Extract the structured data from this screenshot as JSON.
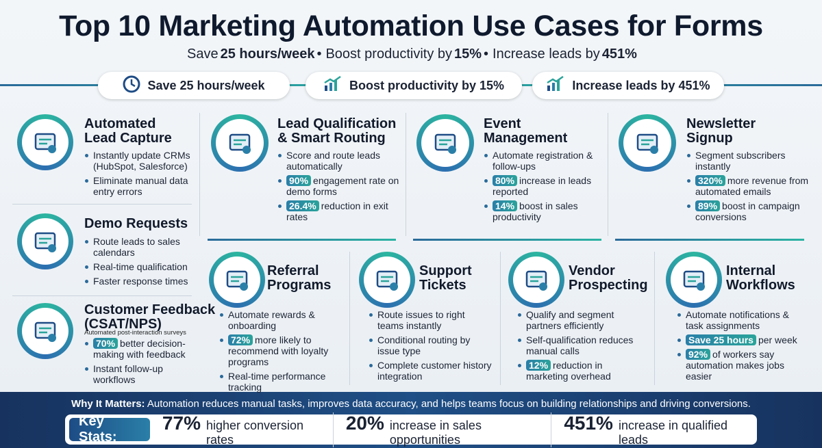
{
  "header": {
    "title": "Top 10 Marketing Automation Use Cases for Forms",
    "subtitle": [
      {
        "text": "Save",
        "bold": false
      },
      {
        "text": "25 hours/week",
        "bold": true
      },
      {
        "text": "•",
        "bold": false
      },
      {
        "text": "Boost productivity by",
        "bold": false
      },
      {
        "text": "15%",
        "bold": true
      },
      {
        "text": "•",
        "bold": false
      },
      {
        "text": "Increase leads by",
        "bold": false
      },
      {
        "text": "451%",
        "bold": true
      }
    ],
    "pills": [
      "Save 25 hours/week",
      "Boost productivity by 15%",
      "Increase leads by 451%"
    ]
  },
  "cards": [
    {
      "title": [
        "Automated",
        "Lead Capture"
      ],
      "items": [
        "Instantly update CRMs (HubSpot, Salesforce)",
        "Eliminate manual data entry errors"
      ]
    },
    {
      "title": [
        "Demo Requests"
      ],
      "items": [
        "Route leads to sales calendars",
        "Real-time qualification",
        "Faster response times"
      ]
    },
    {
      "title": [
        "Customer Feedback",
        "(CSAT/NPS)"
      ],
      "note": "Automated post-interaction surveys",
      "items": [
        {
          "badge": "70%",
          "text": "better decision-making with feedback"
        },
        "Instant follow-up workflows"
      ]
    },
    {
      "title": [
        "Lead Qualification",
        "& Smart Routing"
      ],
      "items": [
        "Score and route leads automatically",
        {
          "badge": "90%",
          "text": "engagement rate on demo forms"
        },
        {
          "badge": "26.4%",
          "text": "reduction in exit rates"
        }
      ]
    },
    {
      "title": [
        "Event",
        "Management"
      ],
      "items": [
        "Automate registration & follow-ups",
        {
          "badge": "80%",
          "text": "increase in leads reported"
        },
        {
          "badge": "14%",
          "text": "boost in sales productivity"
        }
      ]
    },
    {
      "title": [
        "Newsletter",
        "Signup"
      ],
      "items": [
        "Segment subscribers instantly",
        {
          "badge": "320%",
          "text": "more revenue from automated emails"
        },
        {
          "badge": "89%",
          "text": "boost in campaign conversions"
        }
      ]
    },
    {
      "title": [
        "Referral",
        "Programs"
      ],
      "items": [
        "Automate rewards & onboarding",
        {
          "badge": "72%",
          "text": "more likely to recommend with loyalty programs"
        },
        "Real-time performance tracking"
      ]
    },
    {
      "title": [
        "Support",
        "Tickets"
      ],
      "items": [
        "Route issues to right teams instantly",
        "Conditional routing by issue type",
        "Complete customer history integration"
      ]
    },
    {
      "title": [
        "Vendor",
        "Prospecting"
      ],
      "items": [
        "Qualify and segment partners efficiently",
        "Self-qualification reduces manual calls",
        {
          "badge": "12%",
          "text": "reduction in marketing overhead"
        }
      ]
    },
    {
      "title": [
        "Internal",
        "Workflows"
      ],
      "items": [
        "Automate notifications & task assignments",
        {
          "badge": "Save 25 hours",
          "text": "per week"
        },
        {
          "badge": "92%",
          "text": "of workers say automation makes jobs easier"
        }
      ]
    }
  ],
  "footer": {
    "why_label": "Why It Matters:",
    "why_text": "Automation reduces manual tasks, improves data accuracy, and helps teams focus on building relationships and driving conversions.",
    "stats_label": "Key Stats:",
    "stats": [
      {
        "value": "77%",
        "text": "higher conversion rates"
      },
      {
        "value": "20%",
        "text": "increase in sales opportunities"
      },
      {
        "value": "451%",
        "text": "increase in qualified leads"
      }
    ]
  }
}
